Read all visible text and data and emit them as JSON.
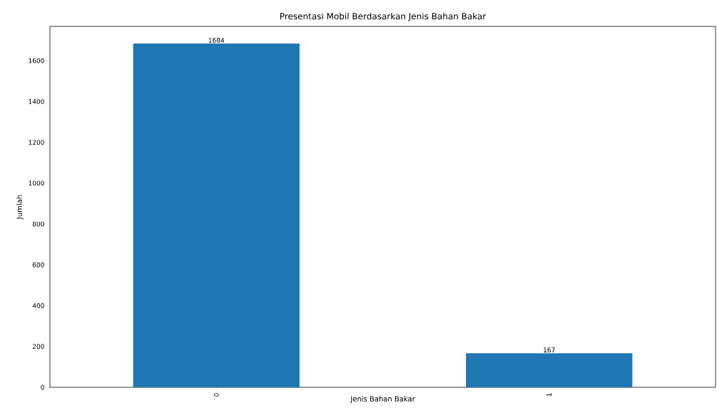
{
  "chart_data": {
    "type": "bar",
    "title": "Presentasi Mobil Berdasarkan Jenis Bahan Bakar",
    "xlabel": "Jenis Bahan Bakar",
    "ylabel": "Jumlah",
    "categories": [
      "0",
      "1"
    ],
    "values": [
      1684,
      167
    ],
    "color": "#1f77b4",
    "ylim": [
      0,
      1768
    ],
    "yticks": [
      0,
      200,
      400,
      600,
      800,
      1000,
      1200,
      1400,
      1600
    ],
    "data_labels": true,
    "grid": false
  }
}
